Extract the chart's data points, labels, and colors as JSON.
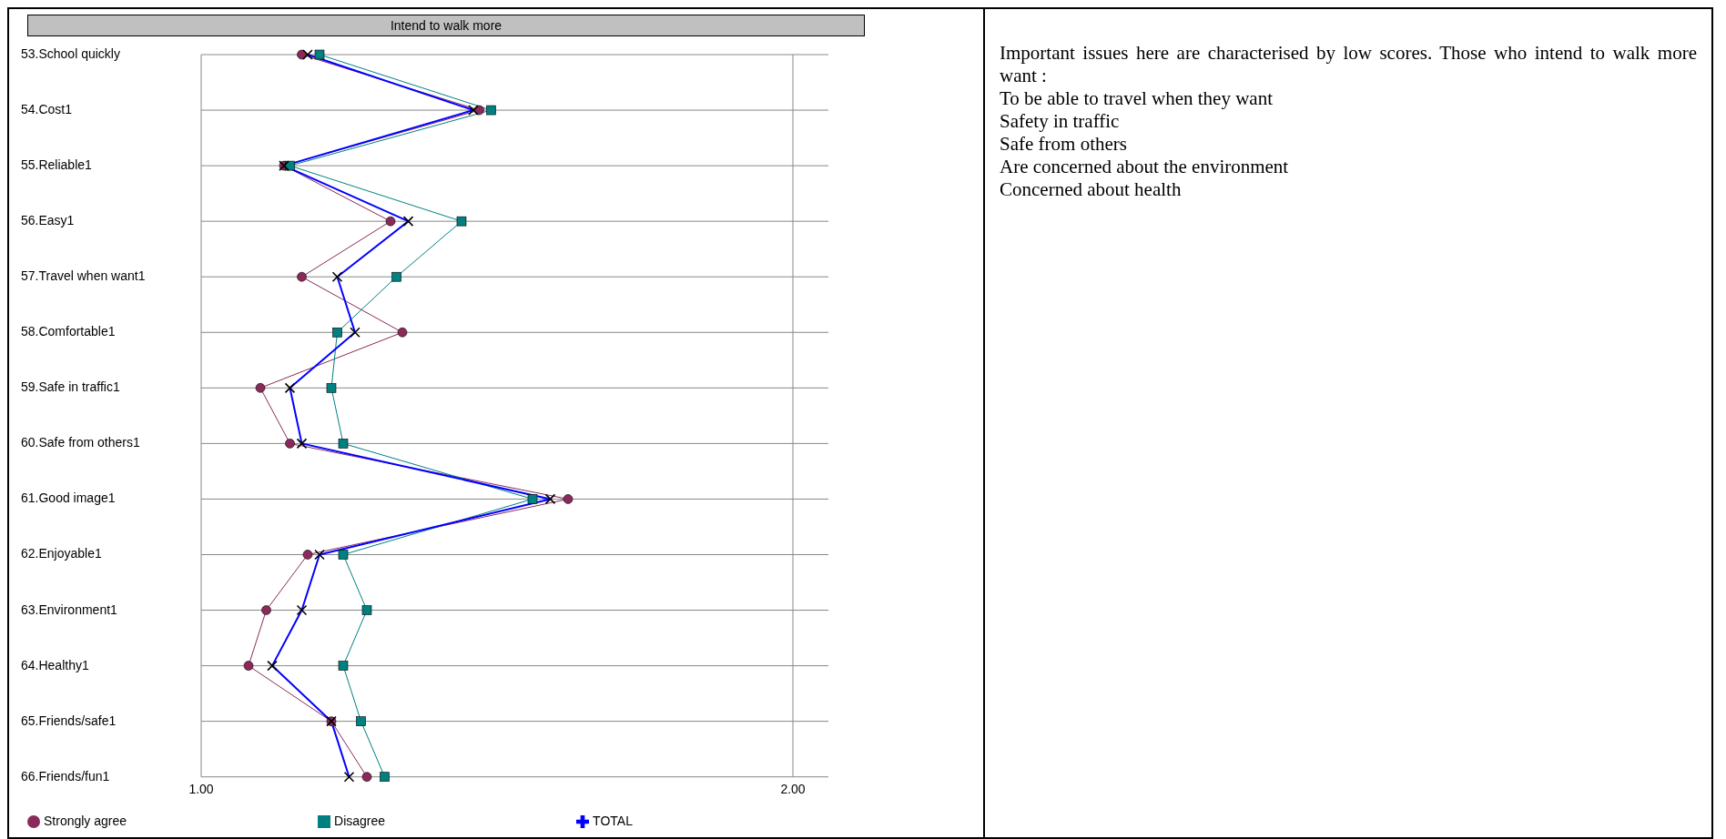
{
  "chart_data": {
    "type": "line",
    "orientation": "horizontal",
    "title": "Intend to walk more",
    "categories": [
      "53.School quickly",
      "54.Cost1",
      "55.Reliable1",
      "56.Easy1",
      "57.Travel when want1",
      "58.Comfortable1",
      "59.Safe in traffic1",
      "60.Safe from others1",
      "61.Good image1",
      "62.Enjoyable1",
      "63.Environment1",
      "64.Healthy1",
      "65.Friends/safe1",
      "66.Friends/fun1"
    ],
    "series": [
      {
        "name": "Strongly agree",
        "color": "#8b2a5a",
        "marker": "circle",
        "values": [
          1.17,
          1.47,
          1.14,
          1.32,
          1.17,
          1.34,
          1.1,
          1.15,
          1.62,
          1.18,
          1.11,
          1.08,
          1.22,
          1.28
        ]
      },
      {
        "name": "Disagree",
        "color": "#008080",
        "marker": "square",
        "values": [
          1.2,
          1.49,
          1.15,
          1.44,
          1.33,
          1.23,
          1.22,
          1.24,
          1.56,
          1.24,
          1.28,
          1.24,
          1.27,
          1.31
        ]
      },
      {
        "name": "TOTAL",
        "color": "#0000ff",
        "marker": "cross",
        "values": [
          1.18,
          1.46,
          1.14,
          1.35,
          1.23,
          1.26,
          1.15,
          1.17,
          1.59,
          1.2,
          1.17,
          1.12,
          1.22,
          1.25
        ]
      }
    ],
    "xlim": [
      1,
      2.06
    ],
    "xticks": [
      {
        "value": 1,
        "label": "1.00"
      },
      {
        "value": 2,
        "label": "2.00"
      }
    ],
    "grid": true,
    "legend": "bottom left",
    "annotations": [
      "Important issues here are characterised by low scores. Those who intend to walk more want :",
      "To be able to travel when they want",
      "Safety in traffic",
      "Safe from others",
      "Are concerned about the environment",
      "Concerned about health"
    ]
  }
}
